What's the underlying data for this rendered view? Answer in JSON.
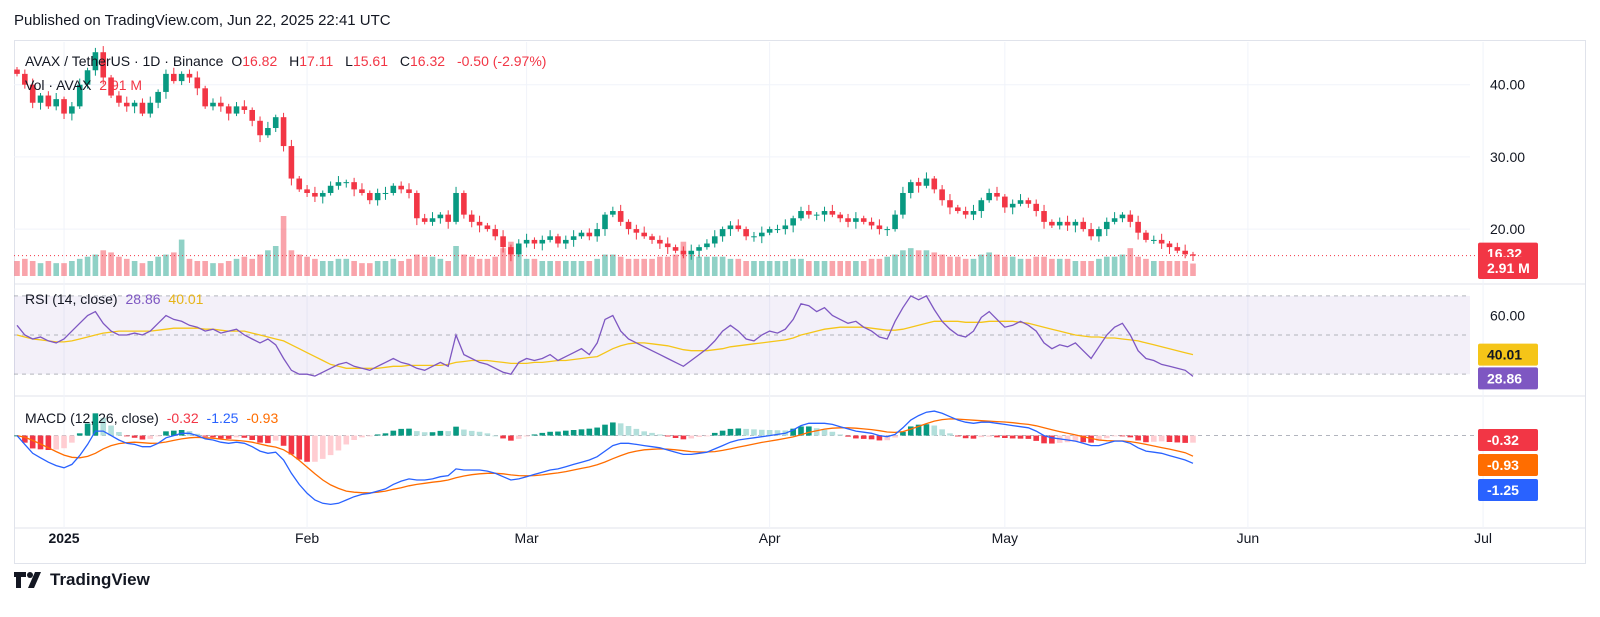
{
  "header": {
    "published": "Published on TradingView.com, Jun 22, 2025 22:41 UTC"
  },
  "legend": {
    "symbol": "AVAX / TetherUS · 1D · Binance",
    "open_label": "O",
    "open": "16.82",
    "high_label": "H",
    "high": "17.11",
    "low_label": "L",
    "low": "15.61",
    "close_label": "C",
    "close": "16.32",
    "change": "-0.50 (-2.97%)",
    "vol_label": "Vol · AVAX",
    "vol_value": "2.91 M",
    "rsi_label": "RSI (14, close)",
    "rsi_value": "28.86",
    "rsi_ma_value": "40.01",
    "macd_label": "MACD (12, 26, close)",
    "macd_hist": "-0.32",
    "macd_line": "-1.25",
    "macd_signal": "-0.93"
  },
  "badges": {
    "price": "16.32",
    "volume": "2.91 M",
    "rsi_ma": "40.01",
    "rsi": "28.86",
    "macd_hist": "-0.32",
    "macd_signal": "-0.93",
    "macd_line": "-1.25"
  },
  "brand": {
    "name": "TradingView"
  },
  "colors": {
    "up": "#089981",
    "down": "#f23645",
    "rsi": "#7e57c2",
    "rsi_ma": "#f5c518",
    "macd": "#2962ff",
    "signal": "#ff6d00"
  },
  "chart_data": {
    "type": "candlestick",
    "title": "AVAX / TetherUS · 1D · Binance",
    "price_axis": {
      "ticks": [
        "40.00",
        "30.00",
        "20.00"
      ],
      "range": [
        13.5,
        45.5
      ]
    },
    "time_axis": {
      "labels": [
        "2025",
        "Feb",
        "Mar",
        "Apr",
        "May",
        "Jun",
        "Jul"
      ]
    },
    "price_series": {
      "start": "2024-12-26",
      "close": [
        41.5,
        40.0,
        37.5,
        38.5,
        37.0,
        38.0,
        36.0,
        37.0,
        40.0,
        42.0,
        44.5,
        41.0,
        38.5,
        37.5,
        37.0,
        37.5,
        36.0,
        37.5,
        39.0,
        41.5,
        40.5,
        41.5,
        41.0,
        39.5,
        37.0,
        37.5,
        37.0,
        36.0,
        37.0,
        36.5,
        35.0,
        33.0,
        34.0,
        35.5,
        31.5,
        27.0,
        25.5,
        25.0,
        24.5,
        25.0,
        26.0,
        26.5,
        26.5,
        25.5,
        25.0,
        24.0,
        25.0,
        25.0,
        26.0,
        25.5,
        25.0,
        21.5,
        21.0,
        21.5,
        22.0,
        21.0,
        25.0,
        22.0,
        21.0,
        20.5,
        20.0,
        19.0,
        17.5,
        16.5,
        18.0,
        18.5,
        18.0,
        18.5,
        19.0,
        18.0,
        18.5,
        19.0,
        19.5,
        19.0,
        20.0,
        22.0,
        22.5,
        21.0,
        20.0,
        19.5,
        19.0,
        18.5,
        18.0,
        17.5,
        17.0,
        16.5,
        17.0,
        17.5,
        18.0,
        19.0,
        20.0,
        20.5,
        20.0,
        19.0,
        19.0,
        19.5,
        20.0,
        20.0,
        20.5,
        21.5,
        22.5,
        22.0,
        22.0,
        22.5,
        22.0,
        21.5,
        21.0,
        21.5,
        21.0,
        20.5,
        20.0,
        20.0,
        22.0,
        25.0,
        26.5,
        26.0,
        27.0,
        25.5,
        24.0,
        23.0,
        22.5,
        22.0,
        22.5,
        24.0,
        25.0,
        24.5,
        23.0,
        23.5,
        24.0,
        23.5,
        22.5,
        21.0,
        20.5,
        21.0,
        20.5,
        21.0,
        20.0,
        19.0,
        20.0,
        21.0,
        21.5,
        22.0,
        21.0,
        19.5,
        18.5,
        18.5,
        18.0,
        17.5,
        17.0,
        16.5,
        16.32
      ],
      "volume_millions": [
        3.5,
        4.0,
        3.5,
        3.0,
        3.5,
        3.0,
        3.0,
        3.5,
        4.0,
        4.5,
        5.0,
        6.0,
        5.5,
        4.5,
        4.0,
        3.5,
        3.0,
        3.5,
        4.5,
        5.0,
        5.5,
        8.5,
        4.0,
        3.5,
        3.5,
        3.0,
        3.0,
        3.5,
        4.0,
        4.5,
        4.0,
        5.0,
        6.0,
        7.0,
        14.0,
        6.0,
        5.0,
        4.5,
        4.0,
        3.5,
        3.5,
        4.0,
        4.0,
        3.5,
        3.0,
        3.0,
        3.5,
        3.5,
        4.0,
        3.5,
        4.0,
        5.0,
        4.5,
        4.5,
        4.0,
        3.5,
        7.0,
        5.0,
        4.5,
        4.0,
        4.0,
        4.5,
        6.5,
        8.0,
        5.0,
        4.0,
        4.0,
        3.5,
        3.5,
        3.5,
        3.5,
        3.5,
        3.5,
        3.5,
        4.0,
        5.0,
        5.0,
        4.5,
        4.0,
        4.0,
        4.0,
        4.0,
        4.5,
        4.5,
        5.0,
        8.0,
        5.0,
        4.5,
        4.5,
        4.5,
        4.5,
        4.0,
        4.0,
        3.5,
        3.5,
        3.5,
        3.5,
        3.5,
        3.5,
        4.0,
        4.0,
        3.5,
        3.5,
        3.5,
        3.5,
        3.5,
        3.5,
        3.5,
        3.5,
        4.0,
        4.0,
        4.5,
        5.0,
        6.0,
        6.5,
        6.0,
        6.0,
        5.5,
        5.0,
        4.5,
        4.5,
        4.0,
        4.0,
        5.0,
        5.5,
        5.0,
        4.5,
        4.5,
        4.0,
        4.0,
        4.5,
        4.5,
        4.0,
        4.0,
        4.0,
        3.5,
        3.5,
        3.5,
        4.0,
        4.5,
        4.5,
        5.0,
        6.5,
        4.5,
        4.0,
        3.5,
        3.5,
        3.5,
        3.5,
        3.5,
        2.91
      ]
    },
    "rsi": {
      "axis_ticks": [
        "60.00"
      ],
      "bands": [
        70,
        50,
        30
      ],
      "range": [
        26,
        72
      ],
      "rsi": [
        55,
        50,
        48,
        49,
        47,
        46,
        48,
        52,
        56,
        60,
        62,
        56,
        52,
        50,
        50,
        51,
        50,
        52,
        56,
        60,
        58,
        57,
        55,
        54,
        52,
        53,
        51,
        52,
        53,
        50,
        48,
        46,
        48,
        45,
        38,
        32,
        30,
        30,
        29,
        31,
        33,
        35,
        36,
        34,
        33,
        32,
        34,
        36,
        38,
        36,
        35,
        33,
        32,
        34,
        36,
        34,
        50,
        40,
        38,
        36,
        35,
        33,
        31,
        30,
        36,
        38,
        37,
        38,
        40,
        37,
        39,
        41,
        43,
        40,
        46,
        58,
        60,
        52,
        48,
        46,
        44,
        42,
        40,
        38,
        36,
        34,
        37,
        40,
        43,
        47,
        52,
        55,
        52,
        48,
        47,
        50,
        52,
        51,
        53,
        58,
        66,
        65,
        62,
        64,
        60,
        58,
        56,
        57,
        54,
        52,
        49,
        48,
        57,
        64,
        70,
        68,
        70,
        63,
        57,
        53,
        50,
        49,
        52,
        59,
        62,
        58,
        54,
        55,
        57,
        55,
        52,
        46,
        43,
        45,
        44,
        46,
        42,
        38,
        44,
        50,
        54,
        56,
        50,
        42,
        38,
        37,
        35,
        34,
        33,
        32,
        28.86
      ],
      "rsi_ma": [
        50,
        49,
        48,
        47.5,
        47,
        46.5,
        46.5,
        47,
        48,
        49,
        50,
        51,
        51.5,
        52,
        52,
        52,
        52,
        52,
        52.5,
        53,
        53.5,
        53.5,
        53.5,
        53.5,
        53,
        53,
        52.5,
        52,
        52,
        52,
        51,
        50,
        49,
        48,
        47,
        45,
        43,
        41,
        39,
        37,
        35,
        34,
        33,
        33,
        33,
        33,
        33,
        33.5,
        34,
        34,
        34.5,
        34.5,
        34.5,
        34.5,
        34.5,
        35,
        36,
        36.5,
        37,
        37,
        37,
        36.5,
        36,
        35.5,
        35.5,
        35.5,
        36,
        36,
        36.5,
        37,
        37,
        37.5,
        38,
        38.5,
        39,
        41,
        43,
        44.5,
        45.5,
        46,
        46,
        45.5,
        45,
        44.5,
        43.5,
        42.5,
        42,
        42,
        42,
        42.5,
        43,
        44,
        44.5,
        45,
        45.5,
        46,
        46.5,
        47,
        47.5,
        48.5,
        50,
        51,
        52,
        53,
        53.5,
        54,
        54,
        54,
        54,
        53.5,
        53,
        52.5,
        52.5,
        53,
        54,
        55,
        56,
        57,
        57,
        57,
        57,
        56.5,
        56.5,
        56.5,
        57,
        57,
        57,
        57,
        56.5,
        56,
        55,
        54,
        53,
        52,
        51,
        50,
        49.5,
        49,
        49,
        48.5,
        48.5,
        48,
        47.5,
        47,
        46,
        45,
        44,
        43,
        42,
        41,
        40.01
      ]
    },
    "macd": {
      "range": [
        -3.8,
        1.6
      ],
      "macd": [
        0.0,
        -0.4,
        -0.8,
        -1.0,
        -1.2,
        -1.35,
        -1.45,
        -1.3,
        -0.9,
        -0.4,
        0.2,
        0.2,
        0.0,
        -0.2,
        -0.35,
        -0.4,
        -0.5,
        -0.5,
        -0.35,
        -0.1,
        0.0,
        0.1,
        0.1,
        0.0,
        -0.15,
        -0.2,
        -0.3,
        -0.35,
        -0.3,
        -0.35,
        -0.5,
        -0.7,
        -0.8,
        -0.75,
        -1.1,
        -1.7,
        -2.2,
        -2.6,
        -2.9,
        -3.05,
        -3.1,
        -3.05,
        -2.9,
        -2.75,
        -2.65,
        -2.6,
        -2.5,
        -2.4,
        -2.2,
        -2.05,
        -1.95,
        -2.0,
        -2.0,
        -1.95,
        -1.85,
        -1.8,
        -1.5,
        -1.55,
        -1.55,
        -1.55,
        -1.6,
        -1.7,
        -1.85,
        -2.0,
        -1.95,
        -1.85,
        -1.75,
        -1.65,
        -1.55,
        -1.5,
        -1.4,
        -1.3,
        -1.2,
        -1.1,
        -0.95,
        -0.7,
        -0.45,
        -0.35,
        -0.35,
        -0.4,
        -0.45,
        -0.5,
        -0.55,
        -0.65,
        -0.75,
        -0.85,
        -0.85,
        -0.8,
        -0.75,
        -0.6,
        -0.45,
        -0.3,
        -0.2,
        -0.15,
        -0.1,
        -0.05,
        0.0,
        0.05,
        0.1,
        0.25,
        0.45,
        0.55,
        0.55,
        0.55,
        0.5,
        0.4,
        0.3,
        0.2,
        0.15,
        0.1,
        0.0,
        -0.05,
        0.05,
        0.35,
        0.7,
        0.9,
        1.05,
        1.1,
        1.0,
        0.85,
        0.7,
        0.6,
        0.55,
        0.6,
        0.6,
        0.55,
        0.5,
        0.45,
        0.4,
        0.35,
        0.2,
        0.0,
        -0.1,
        -0.15,
        -0.2,
        -0.25,
        -0.35,
        -0.45,
        -0.45,
        -0.35,
        -0.25,
        -0.25,
        -0.35,
        -0.55,
        -0.7,
        -0.75,
        -0.8,
        -0.9,
        -1.0,
        -1.1,
        -1.25
      ],
      "signal": [
        0.0,
        -0.08,
        -0.22,
        -0.38,
        -0.55,
        -0.72,
        -0.88,
        -0.98,
        -1.0,
        -0.94,
        -0.8,
        -0.6,
        -0.45,
        -0.36,
        -0.32,
        -0.3,
        -0.32,
        -0.35,
        -0.34,
        -0.29,
        -0.22,
        -0.15,
        -0.1,
        -0.08,
        -0.1,
        -0.12,
        -0.16,
        -0.2,
        -0.22,
        -0.25,
        -0.3,
        -0.38,
        -0.46,
        -0.52,
        -0.64,
        -0.85,
        -1.12,
        -1.42,
        -1.72,
        -2.0,
        -2.22,
        -2.38,
        -2.5,
        -2.55,
        -2.57,
        -2.58,
        -2.55,
        -2.5,
        -2.42,
        -2.35,
        -2.26,
        -2.2,
        -2.15,
        -2.1,
        -2.06,
        -2.0,
        -1.9,
        -1.82,
        -1.76,
        -1.72,
        -1.7,
        -1.7,
        -1.72,
        -1.77,
        -1.8,
        -1.81,
        -1.8,
        -1.77,
        -1.72,
        -1.68,
        -1.62,
        -1.55,
        -1.48,
        -1.41,
        -1.31,
        -1.19,
        -1.04,
        -0.9,
        -0.78,
        -0.7,
        -0.64,
        -0.62,
        -0.6,
        -0.61,
        -0.64,
        -0.68,
        -0.72,
        -0.74,
        -0.74,
        -0.72,
        -0.67,
        -0.6,
        -0.52,
        -0.45,
        -0.38,
        -0.31,
        -0.25,
        -0.19,
        -0.13,
        -0.06,
        0.04,
        0.14,
        0.22,
        0.29,
        0.33,
        0.35,
        0.35,
        0.33,
        0.3,
        0.27,
        0.22,
        0.16,
        0.14,
        0.18,
        0.29,
        0.41,
        0.54,
        0.65,
        0.72,
        0.75,
        0.74,
        0.72,
        0.69,
        0.67,
        0.65,
        0.63,
        0.61,
        0.58,
        0.54,
        0.5,
        0.44,
        0.35,
        0.26,
        0.18,
        0.1,
        0.03,
        -0.05,
        -0.13,
        -0.2,
        -0.23,
        -0.24,
        -0.24,
        -0.27,
        -0.33,
        -0.4,
        -0.47,
        -0.54,
        -0.61,
        -0.69,
        -0.77,
        -0.93
      ]
    }
  }
}
